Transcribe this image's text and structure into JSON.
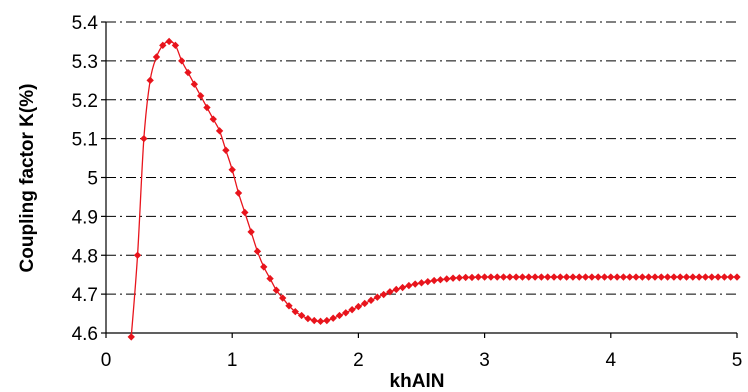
{
  "chart_data": {
    "type": "line",
    "xlabel": "khAlN",
    "ylabel": "Coupling factor K(%)",
    "xlim": [
      0,
      5
    ],
    "ylim": [
      4.6,
      5.4
    ],
    "x_ticks": [
      "0",
      "1",
      "2",
      "3",
      "4",
      "5"
    ],
    "y_ticks": [
      "4.6",
      "4.7",
      "4.8",
      "4.9",
      "5",
      "5.1",
      "5.2",
      "5.3",
      "5.4"
    ],
    "grid": "horizontal dash-dot",
    "legend": "none",
    "colors": {
      "series": "#e8141c",
      "grid": "#000000",
      "axis": "#000000"
    },
    "series": [
      {
        "x": [
          0.2,
          0.25,
          0.3,
          0.35,
          0.4,
          0.45,
          0.5,
          0.55,
          0.6,
          0.65,
          0.7,
          0.75,
          0.8,
          0.85,
          0.9,
          0.95,
          1.0,
          1.05,
          1.1,
          1.15,
          1.2,
          1.25,
          1.3,
          1.35,
          1.4,
          1.45,
          1.5,
          1.55,
          1.6,
          1.65,
          1.7,
          1.75,
          1.8,
          1.85,
          1.9,
          1.95,
          2.0,
          2.05,
          2.1,
          2.15,
          2.2,
          2.25,
          2.3,
          2.35,
          2.4,
          2.45,
          2.5,
          2.55,
          2.6,
          2.65,
          2.7,
          2.75,
          2.8,
          2.85,
          2.9,
          2.95,
          3.0,
          3.05,
          3.1,
          3.15,
          3.2,
          3.25,
          3.3,
          3.35,
          3.4,
          3.45,
          3.5,
          3.55,
          3.6,
          3.65,
          3.7,
          3.75,
          3.8,
          3.85,
          3.9,
          3.95,
          4.0,
          4.05,
          4.1,
          4.15,
          4.2,
          4.25,
          4.3,
          4.35,
          4.4,
          4.45,
          4.5,
          4.55,
          4.6,
          4.65,
          4.7,
          4.75,
          4.8,
          4.85,
          4.9,
          4.95,
          5.0
        ],
        "y": [
          4.59,
          4.8,
          5.1,
          5.25,
          5.31,
          5.34,
          5.35,
          5.34,
          5.3,
          5.27,
          5.24,
          5.21,
          5.18,
          5.15,
          5.12,
          5.07,
          5.02,
          4.96,
          4.91,
          4.86,
          4.81,
          4.77,
          4.74,
          4.71,
          4.69,
          4.67,
          4.655,
          4.645,
          4.637,
          4.632,
          4.63,
          4.632,
          4.638,
          4.645,
          4.652,
          4.66,
          4.668,
          4.676,
          4.684,
          4.692,
          4.699,
          4.706,
          4.712,
          4.717,
          4.722,
          4.726,
          4.729,
          4.732,
          4.735,
          4.737,
          4.739,
          4.741,
          4.742,
          4.743,
          4.743,
          4.744,
          4.744,
          4.744,
          4.744,
          4.744,
          4.744,
          4.744,
          4.744,
          4.744,
          4.744,
          4.744,
          4.744,
          4.744,
          4.744,
          4.744,
          4.744,
          4.744,
          4.744,
          4.744,
          4.744,
          4.744,
          4.744,
          4.744,
          4.744,
          4.744,
          4.744,
          4.744,
          4.744,
          4.744,
          4.744,
          4.744,
          4.744,
          4.744,
          4.744,
          4.744,
          4.744,
          4.744,
          4.744,
          4.744,
          4.744,
          4.744,
          4.744
        ]
      }
    ]
  }
}
